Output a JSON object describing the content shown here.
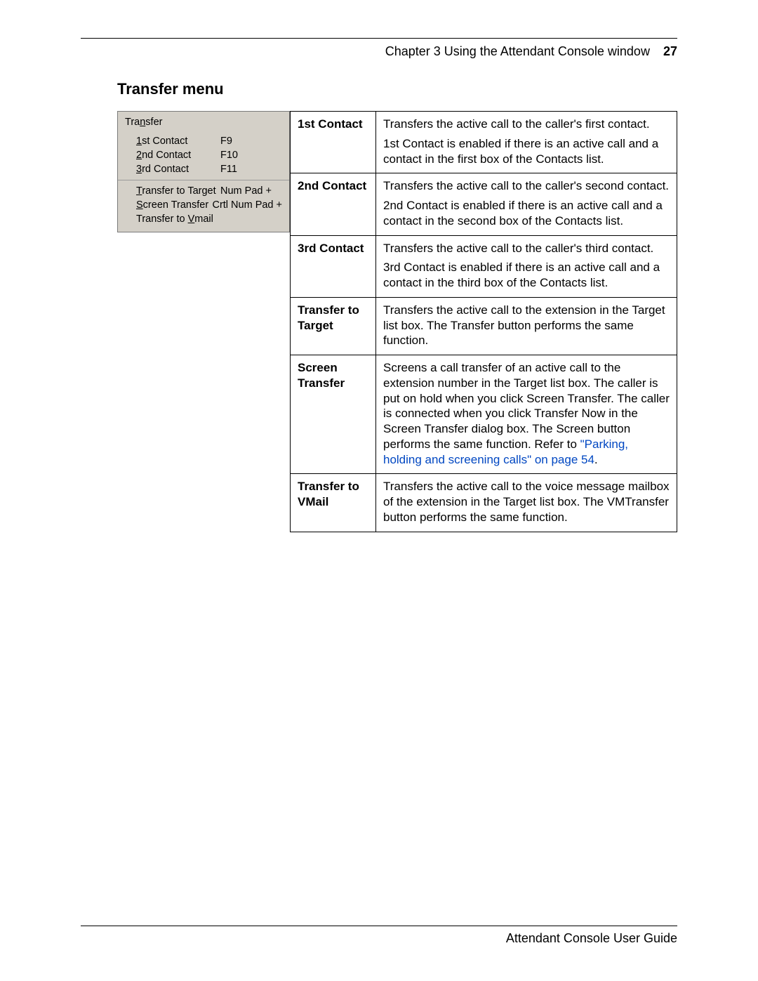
{
  "header": {
    "chapter_label": "Chapter 3  Using the Attendant Console window",
    "page_number": "27"
  },
  "section_title": "Transfer menu",
  "menu": {
    "title_pre": "Tra",
    "title_u": "n",
    "title_post": "sfer",
    "groups": [
      [
        {
          "u": "1",
          "rest": "st Contact",
          "shortcut": "F9"
        },
        {
          "u": "2",
          "rest": "nd Contact",
          "shortcut": "F10"
        },
        {
          "u": "3",
          "rest": "rd Contact",
          "shortcut": "F11"
        }
      ],
      [
        {
          "u": "T",
          "rest": "ransfer to Target",
          "shortcut": "Num Pad +"
        },
        {
          "u": "S",
          "rest": "creen Transfer",
          "shortcut": "Crtl Num Pad +"
        },
        {
          "pre": "Transfer to ",
          "u": "V",
          "rest": "mail",
          "shortcut": ""
        }
      ]
    ],
    "bg_color": "#d4d0c8",
    "font": "Tahoma"
  },
  "definitions": [
    {
      "term": "1st Contact",
      "desc": [
        "Transfers the active call to the caller's first contact.",
        "1st Contact is enabled if there is an active call and a contact in the first box of the Contacts list."
      ]
    },
    {
      "term": "2nd Contact",
      "desc": [
        "Transfers the active call to the caller's second contact.",
        "2nd Contact is enabled if there is an active call and a contact in the second box of the Contacts list."
      ]
    },
    {
      "term": "3rd Contact",
      "desc": [
        "Transfers the active call to the caller's third contact.",
        "3rd Contact is enabled if there is an active call and a contact in the third box of the Contacts list."
      ]
    },
    {
      "term": "Transfer to Target",
      "desc": [
        "Transfers the active call to the extension in the Target list box. The Transfer button performs the same function."
      ]
    },
    {
      "term": "Screen Transfer",
      "desc_pre": "Screens a call transfer of an active call to the extension number in the Target list box. The caller is put on hold when you click Screen Transfer. The caller is connected when you click Transfer Now in the Screen Transfer dialog box. The Screen button performs the same function. Refer to ",
      "link_text": "\"Parking, holding and screening calls\" on page 54",
      "desc_post": "."
    },
    {
      "term": "Transfer to VMail",
      "desc": [
        "Transfers the active call to the voice message mailbox of the extension in the Target list box. The VMTransfer button performs the same function."
      ]
    }
  ],
  "footer": {
    "guide_title": "Attendant Console User Guide"
  },
  "colors": {
    "text": "#000000",
    "link": "#0047c2",
    "menu_bg": "#d4d0c8",
    "menu_border": "#7b7b7b",
    "page_bg": "#ffffff"
  },
  "typography": {
    "body_font": "Arial",
    "menu_font": "Tahoma",
    "section_title_size_pt": 16,
    "body_size_pt": 12
  }
}
